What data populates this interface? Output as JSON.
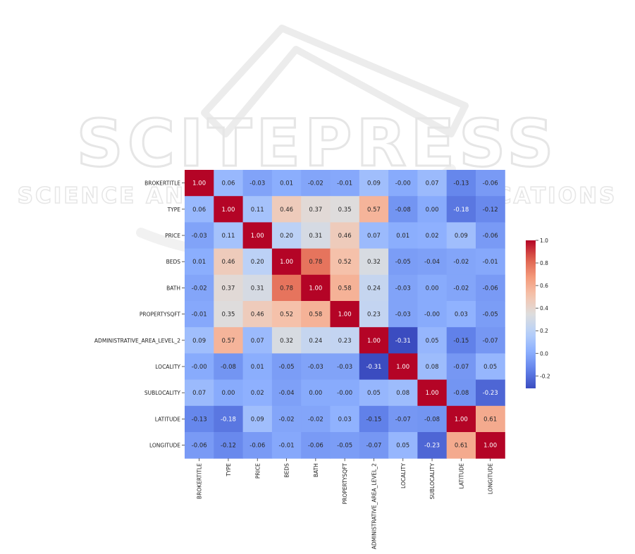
{
  "watermark": {
    "line1": "SCITEPRESS",
    "line2": "SCIENCE AND TECHNOLOGY PUBLICATIONS"
  },
  "chart_data": {
    "type": "heatmap",
    "title": "",
    "xlabel": "",
    "ylabel": "",
    "labels": [
      "BROKERTITLE",
      "TYPE",
      "PRICE",
      "BEDS",
      "BATH",
      "PROPERTYSQFT",
      "ADMINISTRATIVE_AREA_LEVEL_2",
      "LOCALITY",
      "SUBLOCALITY",
      "LATITUDE",
      "LONGITUDE"
    ],
    "matrix": [
      [
        1.0,
        0.06,
        -0.03,
        0.01,
        -0.02,
        -0.01,
        0.09,
        -0.0,
        0.07,
        -0.13,
        -0.06
      ],
      [
        0.06,
        1.0,
        0.11,
        0.46,
        0.37,
        0.35,
        0.57,
        -0.08,
        0.0,
        -0.18,
        -0.12
      ],
      [
        -0.03,
        0.11,
        1.0,
        0.2,
        0.31,
        0.46,
        0.07,
        0.01,
        0.02,
        0.09,
        -0.06
      ],
      [
        0.01,
        0.46,
        0.2,
        1.0,
        0.78,
        0.52,
        0.32,
        -0.05,
        -0.04,
        -0.02,
        -0.01
      ],
      [
        -0.02,
        0.37,
        0.31,
        0.78,
        1.0,
        0.58,
        0.24,
        -0.03,
        0.0,
        -0.02,
        -0.06
      ],
      [
        -0.01,
        0.35,
        0.46,
        0.52,
        0.58,
        1.0,
        0.23,
        -0.03,
        -0.0,
        0.03,
        -0.05
      ],
      [
        0.09,
        0.57,
        0.07,
        0.32,
        0.24,
        0.23,
        1.0,
        -0.31,
        0.05,
        -0.15,
        -0.07
      ],
      [
        -0.0,
        -0.08,
        0.01,
        -0.05,
        -0.03,
        -0.03,
        -0.31,
        1.0,
        0.08,
        -0.07,
        0.05
      ],
      [
        0.07,
        0.0,
        0.02,
        -0.04,
        0.0,
        -0.0,
        0.05,
        0.08,
        1.0,
        -0.08,
        -0.23
      ],
      [
        -0.13,
        -0.18,
        0.09,
        -0.02,
        -0.02,
        0.03,
        -0.15,
        -0.07,
        -0.08,
        1.0,
        0.61
      ],
      [
        -0.06,
        -0.12,
        -0.06,
        -0.01,
        -0.06,
        -0.05,
        -0.07,
        0.05,
        -0.23,
        0.61,
        1.0
      ]
    ],
    "colormap": "coolwarm",
    "vmin": -0.31,
    "vmax": 1.0,
    "colorbar_ticks": [
      "1.0",
      "0.8",
      "0.6",
      "0.4",
      "0.2",
      "0.0",
      "-0.2"
    ],
    "colorbar_placement": "right",
    "annotated": true,
    "grid": false
  }
}
